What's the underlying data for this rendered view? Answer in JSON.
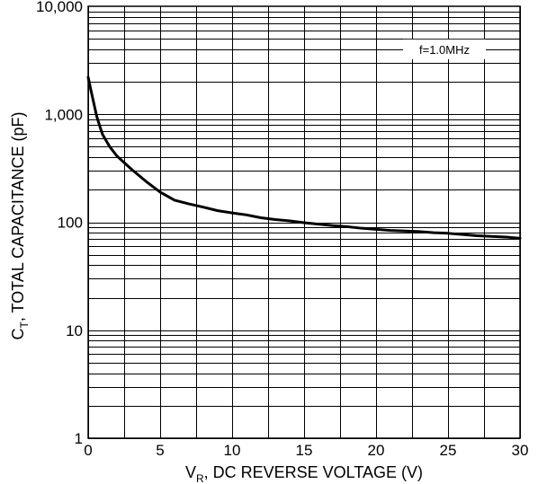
{
  "chart_data": {
    "type": "line",
    "title": "",
    "xlabel": {
      "main": "V",
      "sub": "R",
      "rest": ", DC REVERSE VOLTAGE (V)"
    },
    "ylabel": {
      "main": "C",
      "sub": "T",
      "rest": ", TOTAL CAPACITANCE (pF)"
    },
    "xlim": [
      0,
      30
    ],
    "ylim": [
      1,
      10000
    ],
    "yscale": "log",
    "grid": true,
    "x_ticks": [
      {
        "value": 0,
        "label": "0"
      },
      {
        "value": 5,
        "label": "5"
      },
      {
        "value": 10,
        "label": "10"
      },
      {
        "value": 15,
        "label": "15"
      },
      {
        "value": 20,
        "label": "20"
      },
      {
        "value": 25,
        "label": "25"
      },
      {
        "value": 30,
        "label": "30"
      }
    ],
    "y_ticks": [
      {
        "value": 1,
        "label": "1"
      },
      {
        "value": 10,
        "label": "10"
      },
      {
        "value": 100,
        "label": "100"
      },
      {
        "value": 1000,
        "label": "1,000"
      },
      {
        "value": 10000,
        "label": "10,000"
      }
    ],
    "annotation": "f=1.0MHz",
    "series": [
      {
        "x": [
          0,
          0.2,
          0.4,
          0.6,
          0.8,
          1,
          1.5,
          2,
          3,
          4,
          5,
          6,
          7,
          8,
          9,
          10,
          11,
          12,
          13,
          14,
          15,
          16,
          17,
          18,
          19,
          20,
          21,
          22,
          23,
          24,
          25,
          26,
          27,
          28,
          29,
          30
        ],
        "y": [
          2200,
          1650,
          1250,
          950,
          780,
          650,
          500,
          410,
          310,
          240,
          190,
          160,
          148,
          138,
          128,
          122,
          117,
          110,
          106,
          103,
          99,
          96,
          93,
          91,
          88,
          86,
          84,
          83,
          82,
          80,
          79,
          77,
          75,
          74,
          73,
          71
        ]
      }
    ]
  }
}
